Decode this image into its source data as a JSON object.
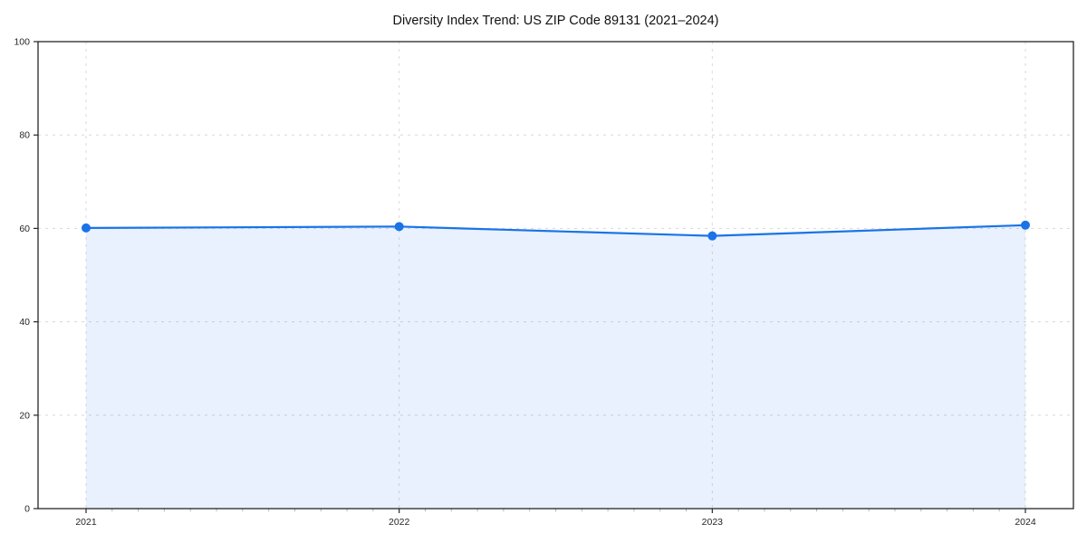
{
  "chart_data": {
    "type": "area",
    "title": "Diversity Index Trend: US ZIP Code 89131 (2021–2024)",
    "x": [
      2021,
      2022,
      2023,
      2024
    ],
    "xtick_labels": [
      "2021",
      "2022",
      "2023",
      "2024"
    ],
    "series": [
      {
        "name": "Diversity Index",
        "values": [
          60.1,
          60.4,
          58.4,
          60.7
        ]
      }
    ],
    "xlabel": "",
    "ylabel": "",
    "ylim": [
      0,
      100
    ],
    "yticks": [
      0,
      20,
      40,
      60,
      80,
      100
    ],
    "grid": true,
    "grid_style": "dashed",
    "legend_position": "none",
    "markers": true,
    "x_minor_ticks_per_interval": 11,
    "colors": {
      "line": "#1a73e8",
      "marker": "#1a73e8",
      "area_fill": "rgba(26,115,232,0.10)",
      "grid": "#dcdcdc",
      "spine": "#262626",
      "tick_label": "#262626",
      "minor_tick": "#b3b3b3",
      "title": "#111111",
      "background": "#ffffff"
    }
  }
}
